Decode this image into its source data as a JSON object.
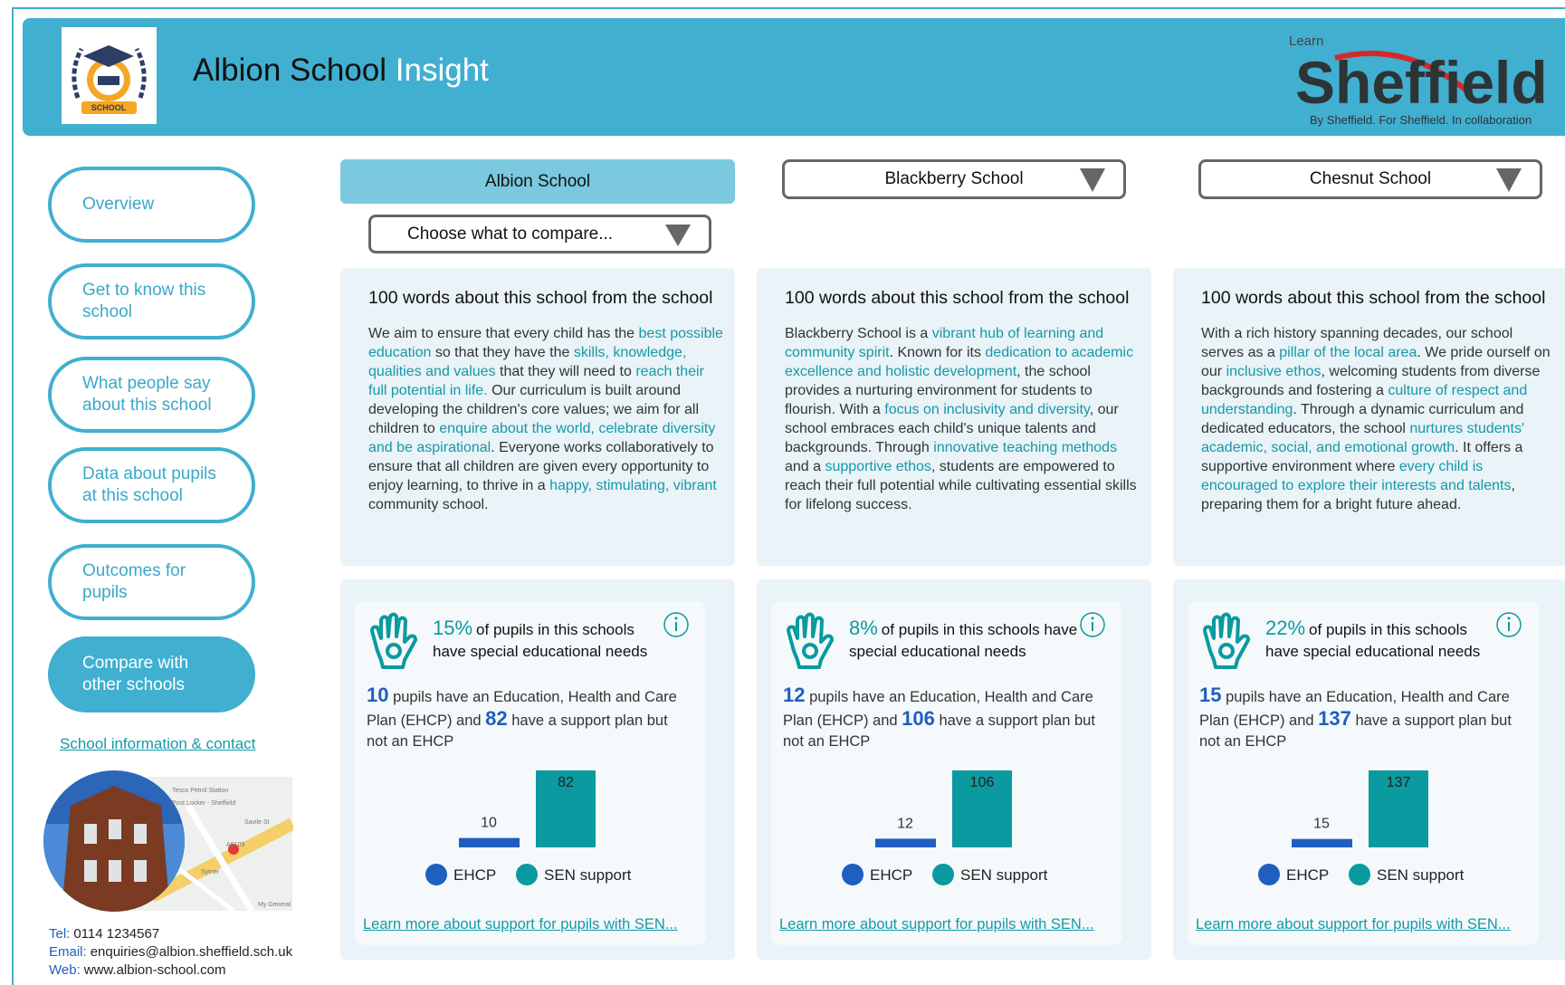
{
  "header": {
    "logo_badge": "SCHOOL",
    "title": "Albion School",
    "title_highlight": "Insight",
    "brand_small": "Learn",
    "brand_name": "Sheffield",
    "brand_tagline": "By Sheffield. For Sheffield. In collaboration"
  },
  "nav": {
    "items": [
      "Overview",
      "Get to know this school",
      "What people say about this school",
      "Data about pupils at this school",
      "Outcomes for pupils",
      "Compare with other schools"
    ],
    "active": 5,
    "info_link": "School information & contact"
  },
  "map_labels": [
    "Tesco Petrol Station",
    "Post Locker - Sheffield",
    "Savile St",
    "A6109",
    "Sytner",
    "My General"
  ],
  "contact": {
    "tel_label": "Tel:",
    "tel": "0114 1234567",
    "email_label": "Email:",
    "email": "enquiries@albion.sheffield.sch.uk",
    "web_label": "Web:",
    "web": "www.albion-school.com"
  },
  "compare_dropdown": "Choose what to compare...",
  "schools": [
    {
      "name": "Albion School",
      "about_title": "100 words about this school from the school",
      "about": [
        {
          "text": "We aim to ensure that every child has the ",
          "highlight": false
        },
        {
          "text": "best possible education",
          "highlight": true
        },
        {
          "text": " so that they have the ",
          "highlight": false
        },
        {
          "text": "skills, knowledge, qualities and values",
          "highlight": true
        },
        {
          "text": " that they will need to ",
          "highlight": false
        },
        {
          "text": "reach their full potential in life.",
          "highlight": true
        },
        {
          "text": " Our curriculum is built around developing the children's core values; we aim for all children to ",
          "highlight": false
        },
        {
          "text": "enquire about the world, celebrate diversity and be aspirational",
          "highlight": true
        },
        {
          "text": ".  Everyone works collaboratively to ensure that all children are given every opportunity to enjoy learning, to thrive in a ",
          "highlight": false
        },
        {
          "text": "happy, stimulating, vibrant",
          "highlight": true
        },
        {
          "text": " community school.",
          "highlight": false
        }
      ],
      "sen": {
        "percent": "15%",
        "percent_text": "of pupils in this schools have special educational needs",
        "ehcp": 10,
        "text_1": "pupils have an Education, Health and Care Plan (EHCP) and",
        "support": 82,
        "text_2": "have a support plan but not an EHCP",
        "legend_ehcp": "EHCP",
        "legend_support": "SEN support",
        "link": "Learn more about support for pupils with SEN..."
      }
    },
    {
      "name": "Blackberry School",
      "about_title": "100 words about this school from the school",
      "about": [
        {
          "text": "Blackberry School is a ",
          "highlight": false
        },
        {
          "text": "vibrant hub of learning and community spirit",
          "highlight": true
        },
        {
          "text": ". Known for its ",
          "highlight": false
        },
        {
          "text": "dedication to academic excellence and holistic development",
          "highlight": true
        },
        {
          "text": ", the school provides a nurturing environment for students to flourish. With a ",
          "highlight": false
        },
        {
          "text": "focus on inclusivity and diversity",
          "highlight": true
        },
        {
          "text": ", our school embraces each child's unique talents and backgrounds. Through ",
          "highlight": false
        },
        {
          "text": "innovative teaching methods",
          "highlight": true
        },
        {
          "text": " and a ",
          "highlight": false
        },
        {
          "text": "supportive ethos",
          "highlight": true
        },
        {
          "text": ", students are empowered to reach their full potential while cultivating essential skills for lifelong success.",
          "highlight": false
        }
      ],
      "sen": {
        "percent": "8%",
        "percent_text": "of pupils in this schools have special educational needs",
        "ehcp": 12,
        "text_1": "pupils have an Education, Health and Care Plan (EHCP) and",
        "support": 106,
        "text_2": "have a support plan but not an EHCP",
        "legend_ehcp": "EHCP",
        "legend_support": "SEN support",
        "link": "Learn more about support for pupils with SEN..."
      }
    },
    {
      "name": "Chesnut School",
      "about_title": "100 words about this school from the school",
      "about": [
        {
          "text": "With a rich history spanning decades, our school serves as a ",
          "highlight": false
        },
        {
          "text": "pillar of the local area",
          "highlight": true
        },
        {
          "text": ". We pride ourself on our ",
          "highlight": false
        },
        {
          "text": "inclusive ethos",
          "highlight": true
        },
        {
          "text": ", welcoming students from diverse backgrounds and fostering a ",
          "highlight": false
        },
        {
          "text": "culture of respect and understanding",
          "highlight": true
        },
        {
          "text": ". Through a dynamic curriculum and dedicated educators, the school ",
          "highlight": false
        },
        {
          "text": "nurtures students' academic, social, and emotional growth",
          "highlight": true
        },
        {
          "text": ". It offers a supportive environment where ",
          "highlight": false
        },
        {
          "text": "every child is encouraged to explore their interests and talents",
          "highlight": true
        },
        {
          "text": ", preparing them for a bright future ahead.",
          "highlight": false
        }
      ],
      "sen": {
        "percent": "22%",
        "percent_text": "of pupils in this schools have special educational needs",
        "ehcp": 15,
        "text_1": "pupils have an Education, Health and Care Plan (EHCP) and",
        "support": 137,
        "text_2": "have a support plan but not an EHCP",
        "legend_ehcp": "EHCP",
        "legend_support": "SEN support",
        "link": "Learn more about support for pupils with SEN..."
      }
    }
  ]
}
